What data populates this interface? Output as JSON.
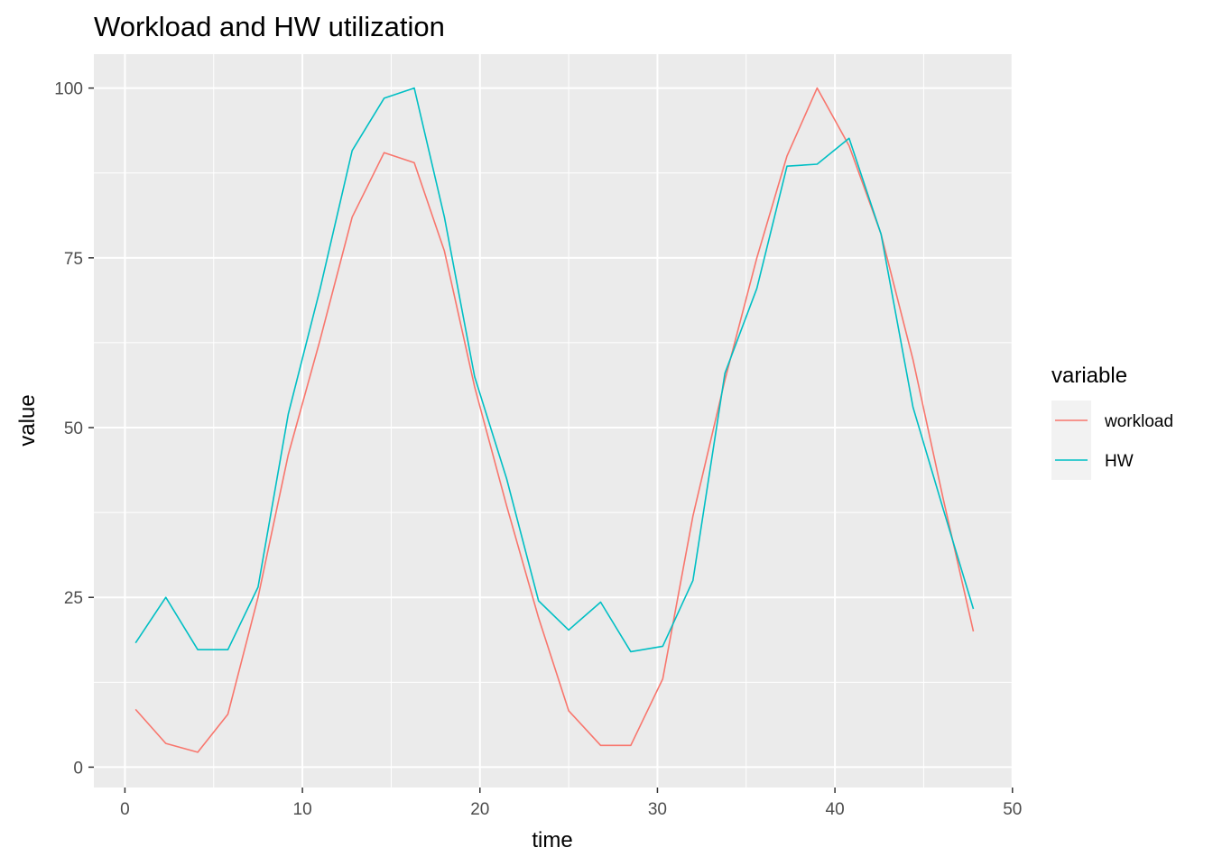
{
  "chart_data": {
    "type": "line",
    "title": "Workload and HW utilization",
    "xlabel": "time",
    "ylabel": "value",
    "xlim": [
      -1.75,
      49.96
    ],
    "ylim": [
      -3.0,
      105.0
    ],
    "xticks": [
      0,
      10,
      20,
      30,
      40,
      50
    ],
    "yticks": [
      0,
      25,
      50,
      75,
      100
    ],
    "grid": true,
    "legend_title": "variable",
    "legend_position": "right",
    "x": [
      0.6,
      2.3,
      4.1,
      5.8,
      7.5,
      9.2,
      11.0,
      12.8,
      14.6,
      16.3,
      18.0,
      19.7,
      21.5,
      23.3,
      25.0,
      26.8,
      28.5,
      30.3,
      32.0,
      33.8,
      35.6,
      37.3,
      39.0,
      40.8,
      42.6,
      44.4,
      46.1,
      47.8
    ],
    "series": [
      {
        "name": "workload",
        "color": "#F8766D",
        "values": [
          8.5,
          3.5,
          2.2,
          7.8,
          25.0,
          46.0,
          63.0,
          81.0,
          90.5,
          89.0,
          76.0,
          56.0,
          38.5,
          22.0,
          8.3,
          3.2,
          3.2,
          13.0,
          37.0,
          57.0,
          75.0,
          90.0,
          100.0,
          91.5,
          78.5,
          60.0,
          39.5,
          20.0
        ]
      },
      {
        "name": "HW",
        "color": "#00BFC4",
        "values": [
          18.3,
          25.0,
          17.3,
          17.3,
          26.5,
          52.0,
          70.5,
          90.8,
          98.5,
          100.0,
          81.0,
          57.5,
          42.5,
          24.5,
          20.2,
          24.3,
          17.0,
          17.8,
          27.5,
          58.0,
          70.5,
          88.5,
          88.8,
          92.6,
          78.5,
          53.0,
          38.0,
          23.3
        ]
      }
    ]
  }
}
